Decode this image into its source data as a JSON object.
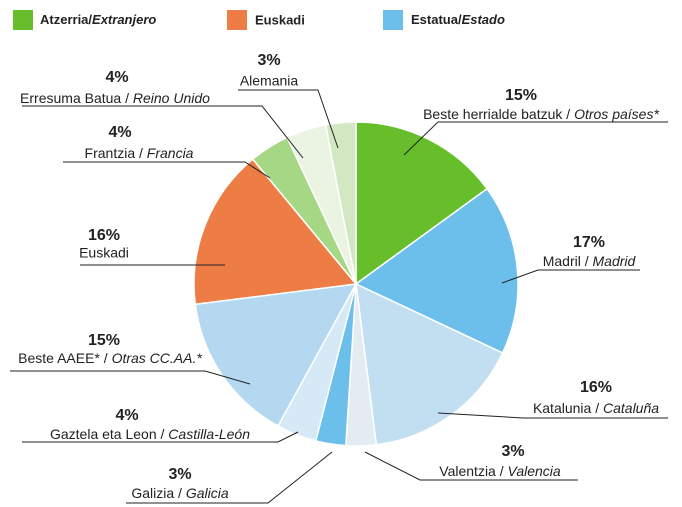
{
  "chart_data": {
    "type": "pie",
    "legend": [
      {
        "label": "Atzerria/Extranjero",
        "color": "#66bf2a"
      },
      {
        "label": "Euskadi",
        "color": "#ed7d45"
      },
      {
        "label": "Estatua/Estado",
        "color": "#6bbfea"
      }
    ],
    "categories": [
      "Beste herrialde batzuk / Otros países*",
      "Madril / Madrid",
      "Katalunia / Cataluña",
      "Valentzia / Valencia",
      "Galizia / Galicia",
      "Gaztela eta Leon / Castilla-León",
      "Beste AAEE* / Otras CC.AA.*",
      "Euskadi",
      "Frantzia / Francia",
      "Erresuma Batua / Reino Unido",
      "Alemania"
    ],
    "values": [
      15,
      17,
      16,
      3,
      3,
      4,
      15,
      16,
      4,
      4,
      3
    ],
    "value_labels": [
      "15%",
      "17%",
      "16%",
      "3%",
      "3%",
      "4%",
      "15%",
      "16%",
      "4%",
      "4%",
      "3%"
    ],
    "colors": [
      "#66bf2a",
      "#6bbfea",
      "#c2dff1",
      "#e3ecf1",
      "#6bbfea",
      "#d6e9f6",
      "#b4d8f0",
      "#ed7d45",
      "#a6d784",
      "#ebf4e2",
      "#d2e8c2"
    ]
  }
}
